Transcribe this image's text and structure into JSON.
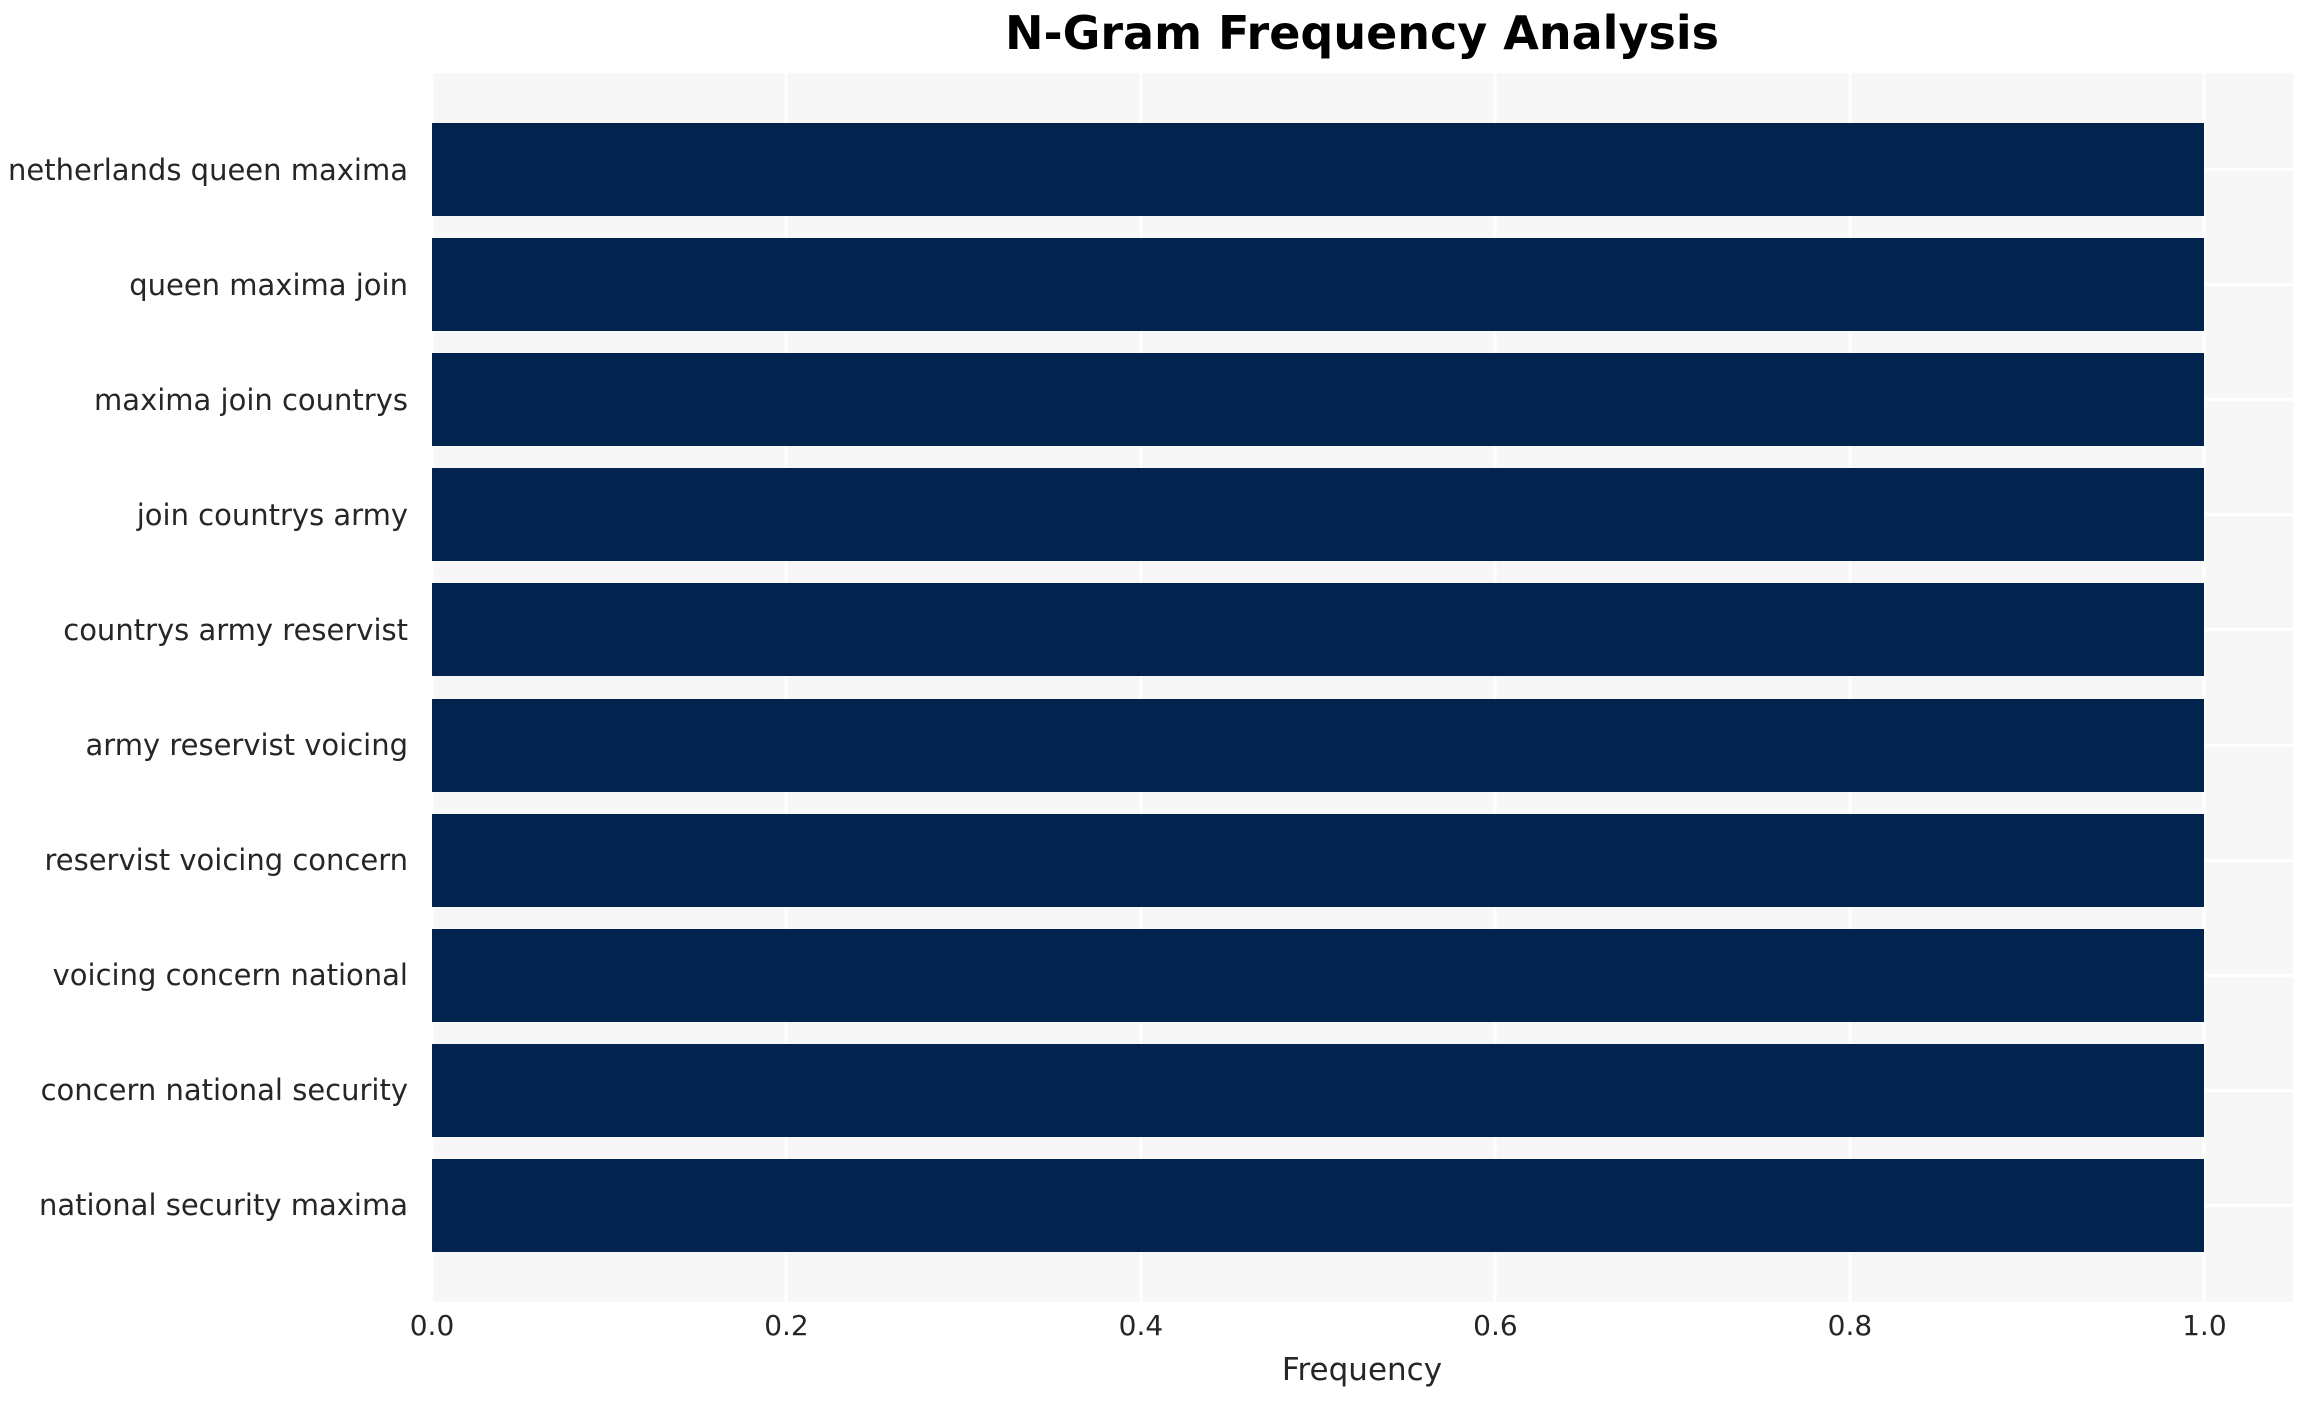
{
  "chart_data": {
    "type": "bar",
    "orientation": "horizontal",
    "title": "N-Gram Frequency Analysis",
    "xlabel": "Frequency",
    "ylabel": "",
    "categories": [
      "netherlands queen maxima",
      "queen maxima join",
      "maxima join countrys",
      "join countrys army",
      "countrys army reservist",
      "army reservist voicing",
      "reservist voicing concern",
      "voicing concern national",
      "concern national security",
      "national security maxima"
    ],
    "values": [
      1.0,
      1.0,
      1.0,
      1.0,
      1.0,
      1.0,
      1.0,
      1.0,
      1.0,
      1.0
    ],
    "xticks": [
      0.0,
      0.2,
      0.4,
      0.6,
      0.8,
      1.0
    ],
    "xtick_labels": [
      "0.0",
      "0.2",
      "0.4",
      "0.6",
      "0.8",
      "1.0"
    ],
    "xlim": [
      0,
      1.05
    ],
    "grid": true,
    "legend_position": "none",
    "colors": {
      "bar": "#02234d",
      "plot_background": "#f7f7f8",
      "gridline": "#ffffff",
      "figure_background": "#ffffff",
      "tick_text": "#262626",
      "title_text": "#000000"
    }
  }
}
